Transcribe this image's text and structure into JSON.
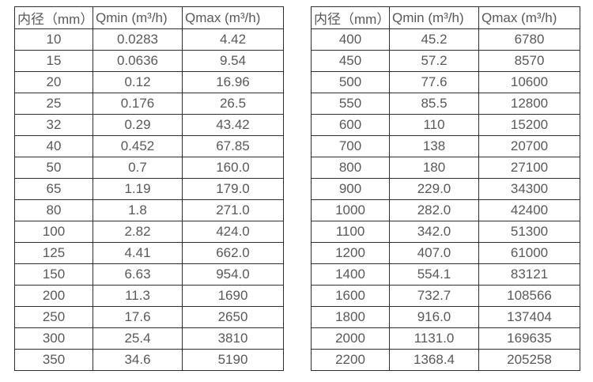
{
  "table_left": {
    "headers": [
      "内径（mm）",
      "Qmin (m³/h)",
      "Qmax (m³/h)"
    ],
    "rows": [
      [
        "10",
        "0.0283",
        "4.42"
      ],
      [
        "15",
        "0.0636",
        "9.54"
      ],
      [
        "20",
        "0.12",
        "16.96"
      ],
      [
        "25",
        "0.176",
        "26.5"
      ],
      [
        "32",
        "0.29",
        "43.42"
      ],
      [
        "40",
        "0.452",
        "67.85"
      ],
      [
        "50",
        "0.7",
        "160.0"
      ],
      [
        "65",
        "1.19",
        "179.0"
      ],
      [
        "80",
        "1.8",
        "271.0"
      ],
      [
        "100",
        "2.82",
        "424.0"
      ],
      [
        "125",
        "4.41",
        "662.0"
      ],
      [
        "150",
        "6.63",
        "954.0"
      ],
      [
        "200",
        "11.3",
        "1690"
      ],
      [
        "250",
        "17.6",
        "2650"
      ],
      [
        "300",
        "25.4",
        "3810"
      ],
      [
        "350",
        "34.6",
        "5190"
      ]
    ]
  },
  "table_right": {
    "headers": [
      "内径（mm）",
      "Qmin (m³/h)",
      "Qmax (m³/h)"
    ],
    "rows": [
      [
        "400",
        "45.2",
        "6780"
      ],
      [
        "450",
        "57.2",
        "8570"
      ],
      [
        "500",
        "77.6",
        "10600"
      ],
      [
        "550",
        "85.5",
        "12800"
      ],
      [
        "600",
        "110",
        "15200"
      ],
      [
        "700",
        "138",
        "20700"
      ],
      [
        "800",
        "180",
        "27100"
      ],
      [
        "900",
        "229.0",
        "34300"
      ],
      [
        "1000",
        "282.0",
        "42400"
      ],
      [
        "1100",
        "342.0",
        "51300"
      ],
      [
        "1200",
        "407.0",
        "61000"
      ],
      [
        "1400",
        "554.1",
        "83121"
      ],
      [
        "1600",
        "732.7",
        "108566"
      ],
      [
        "1800",
        "916.0",
        "137404"
      ],
      [
        "2000",
        "1131.0",
        "169635"
      ],
      [
        "2200",
        "1368.4",
        "205258"
      ]
    ]
  },
  "colors": {
    "border": "#2f2f2f",
    "text": "#595959",
    "background": "#ffffff"
  }
}
